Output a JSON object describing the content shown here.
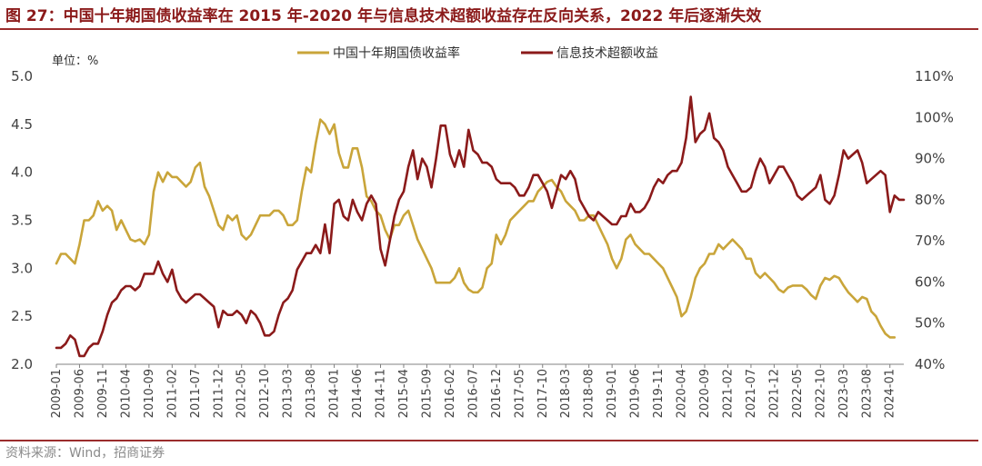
{
  "title": "图 27：中国十年期国债收益率在 2015 年-2020 年与信息技术超额收益存在反向关系，2022 年后逐渐失效",
  "source": "资料来源：Wind，招商证券",
  "colors": {
    "bond": "#c9a53a",
    "excess": "#8b1a1a",
    "brand": "#9b2c2c"
  },
  "chart_data": {
    "type": "line",
    "unit_label": "单位：%",
    "x_tick_labels": [
      "2009-01",
      "2009-06",
      "2009-11",
      "2010-04",
      "2010-09",
      "2011-02",
      "2011-07",
      "2011-12",
      "2012-05",
      "2012-10",
      "2013-03",
      "2013-08",
      "2014-01",
      "2014-06",
      "2014-11",
      "2015-04",
      "2015-09",
      "2016-02",
      "2016-07",
      "2016-12",
      "2017-05",
      "2017-10",
      "2018-03",
      "2018-08",
      "2019-01",
      "2019-06",
      "2019-11",
      "2020-04",
      "2020-09",
      "2021-02",
      "2021-07",
      "2021-12",
      "2022-05",
      "2022-10",
      "2023-03",
      "2023-08",
      "2024-01"
    ],
    "y_left": {
      "range": [
        2.0,
        5.0
      ],
      "ticks": [
        "2.0",
        "2.5",
        "3.0",
        "3.5",
        "4.0",
        "4.5",
        "5.0"
      ]
    },
    "y_right": {
      "range": [
        40,
        110
      ],
      "ticks": [
        "40%",
        "50%",
        "60%",
        "70%",
        "80%",
        "90%",
        "100%",
        "110%"
      ]
    },
    "legend_position": "top-center",
    "grid": false,
    "series": [
      {
        "name": "中国十年期国债收益率",
        "axis": "left",
        "start": "2009-01",
        "values": [
          3.05,
          3.15,
          3.15,
          3.1,
          3.05,
          3.25,
          3.5,
          3.5,
          3.55,
          3.7,
          3.6,
          3.65,
          3.6,
          3.4,
          3.5,
          3.4,
          3.3,
          3.28,
          3.3,
          3.25,
          3.35,
          3.8,
          4.0,
          3.9,
          4.0,
          3.95,
          3.95,
          3.9,
          3.85,
          3.9,
          4.05,
          4.1,
          3.85,
          3.75,
          3.6,
          3.45,
          3.4,
          3.55,
          3.5,
          3.55,
          3.35,
          3.3,
          3.35,
          3.45,
          3.55,
          3.55,
          3.55,
          3.6,
          3.6,
          3.55,
          3.45,
          3.45,
          3.5,
          3.8,
          4.05,
          4.0,
          4.3,
          4.55,
          4.5,
          4.4,
          4.5,
          4.2,
          4.05,
          4.05,
          4.25,
          4.25,
          4.05,
          3.75,
          3.7,
          3.6,
          3.55,
          3.4,
          3.3,
          3.45,
          3.45,
          3.55,
          3.6,
          3.45,
          3.3,
          3.2,
          3.1,
          3.0,
          2.85,
          2.85,
          2.85,
          2.85,
          2.9,
          3.0,
          2.85,
          2.78,
          2.75,
          2.75,
          2.8,
          3.0,
          3.05,
          3.35,
          3.25,
          3.35,
          3.5,
          3.55,
          3.6,
          3.65,
          3.7,
          3.7,
          3.8,
          3.85,
          3.9,
          3.92,
          3.85,
          3.8,
          3.7,
          3.65,
          3.6,
          3.5,
          3.5,
          3.55,
          3.55,
          3.45,
          3.35,
          3.25,
          3.1,
          3.0,
          3.1,
          3.3,
          3.35,
          3.25,
          3.2,
          3.15,
          3.15,
          3.1,
          3.05,
          3.0,
          2.9,
          2.8,
          2.7,
          2.5,
          2.55,
          2.7,
          2.9,
          3.0,
          3.05,
          3.15,
          3.15,
          3.25,
          3.2,
          3.25,
          3.3,
          3.25,
          3.2,
          3.1,
          3.1,
          2.95,
          2.9,
          2.95,
          2.9,
          2.85,
          2.78,
          2.75,
          2.8,
          2.82,
          2.82,
          2.82,
          2.78,
          2.72,
          2.68,
          2.82,
          2.9,
          2.88,
          2.92,
          2.9,
          2.82,
          2.75,
          2.7,
          2.65,
          2.7,
          2.68,
          2.55,
          2.5,
          2.4,
          2.32,
          2.28,
          2.28
        ]
      },
      {
        "name": "信息技术超额收益",
        "axis": "right",
        "start": "2009-01",
        "values": [
          44,
          44,
          45,
          47,
          46,
          42,
          42,
          44,
          45,
          45,
          48,
          52,
          55,
          56,
          58,
          59,
          59,
          58,
          59,
          62,
          62,
          62,
          65,
          62,
          60,
          63,
          58,
          56,
          55,
          56,
          57,
          57,
          56,
          55,
          54,
          49,
          53,
          52,
          52,
          53,
          52,
          50,
          53,
          52,
          50,
          47,
          47,
          48,
          52,
          55,
          56,
          58,
          63,
          65,
          67,
          67,
          69,
          67,
          74,
          67,
          79,
          80,
          76,
          75,
          80,
          77,
          75,
          79,
          81,
          79,
          68,
          64,
          70,
          76,
          80,
          82,
          88,
          92,
          85,
          90,
          88,
          83,
          90,
          98,
          98,
          91,
          88,
          92,
          88,
          97,
          92,
          91,
          89,
          89,
          88,
          85,
          84,
          84,
          84,
          83,
          81,
          81,
          83,
          86,
          86,
          84,
          82,
          78,
          82,
          86,
          85,
          87,
          85,
          80,
          78,
          76,
          75,
          77,
          76,
          75,
          74,
          74,
          76,
          76,
          79,
          77,
          77,
          78,
          80,
          83,
          85,
          84,
          86,
          87,
          87,
          89,
          95,
          105,
          94,
          96,
          97,
          101,
          95,
          94,
          92,
          88,
          86,
          84,
          82,
          82,
          83,
          87,
          90,
          88,
          84,
          86,
          88,
          88,
          86,
          84,
          81,
          80,
          81,
          82,
          83,
          86,
          80,
          79,
          81,
          86,
          92,
          90,
          91,
          92,
          89,
          84,
          85,
          86,
          87,
          86,
          77,
          81,
          80,
          80
        ]
      }
    ]
  }
}
